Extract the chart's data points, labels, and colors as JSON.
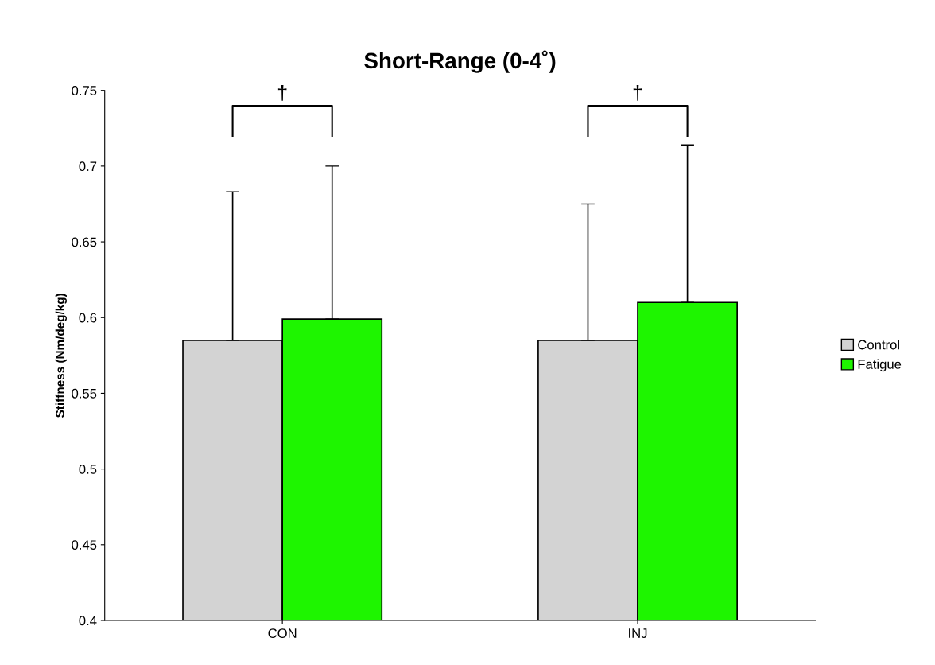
{
  "chart_data": {
    "type": "bar",
    "title": "Short-Range (0-4˚)",
    "ylabel": "Stiffness (Nm/deg/kg)",
    "categories": [
      "CON",
      "INJ"
    ],
    "series": [
      {
        "name": "Control",
        "color": "#d3d3d3",
        "values": [
          0.585,
          0.585
        ],
        "errors": [
          [
            0.585,
            0.683
          ],
          [
            0.585,
            0.675
          ]
        ]
      },
      {
        "name": "Fatigue",
        "color": "#1ef500",
        "values": [
          0.599,
          0.61
        ],
        "errors": [
          [
            0.599,
            0.7
          ],
          [
            0.61,
            0.714
          ]
        ]
      }
    ],
    "ylim": [
      0.4,
      0.75
    ],
    "yticks": [
      0.4,
      0.45,
      0.5,
      0.55,
      0.6,
      0.65,
      0.7,
      0.75
    ],
    "annotations": [
      "†",
      "†"
    ],
    "grid": false,
    "legend": "right"
  }
}
